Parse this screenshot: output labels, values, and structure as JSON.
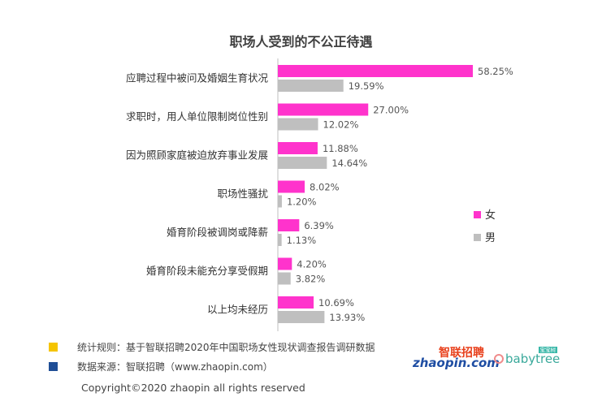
{
  "chart_data": {
    "type": "bar",
    "orientation": "horizontal",
    "title": "职场人受到的不公正待遇",
    "categories": [
      "应聘过程中被问及婚姻生育状况",
      "求职时，用人单位限制岗位性别",
      "因为照顾家庭被迫放弃事业发展",
      "职场性骚扰",
      "婚育阶段被调岗或降薪",
      "婚育阶段未能充分享受假期",
      "以上均未经历"
    ],
    "series": [
      {
        "name": "女",
        "color": "#ff33cc",
        "values": [
          58.25,
          27.0,
          11.88,
          8.02,
          6.39,
          4.2,
          10.69
        ],
        "labels": [
          "58.25%",
          "27.00%",
          "11.88%",
          "8.02%",
          "6.39%",
          "4.20%",
          "10.69%"
        ]
      },
      {
        "name": "男",
        "color": "#bfbfbf",
        "values": [
          19.59,
          12.02,
          14.64,
          1.2,
          1.13,
          3.82,
          13.93
        ],
        "labels": [
          "19.59%",
          "12.02%",
          "14.64%",
          "1.20%",
          "1.13%",
          "3.82%",
          "13.93%"
        ]
      }
    ],
    "xlim": [
      0,
      60
    ],
    "legend": "right",
    "grid": false
  },
  "notes": [
    {
      "text": "统计规则：基于智联招聘2020年中国职场女性现状调查报告调研数据",
      "color": "#f5c400"
    },
    {
      "text": "数据来源：智联招聘（www.zhaopin.com）",
      "color": "#1f4e96"
    }
  ],
  "logos": {
    "zhaopin_cn": "智联招聘",
    "zhaopin_en": "zhaopin.com",
    "babytree_tag": "宝宝树",
    "babytree_en": "babytree"
  },
  "copyright": "Copyright©2020 zhaopin all rights reserved"
}
